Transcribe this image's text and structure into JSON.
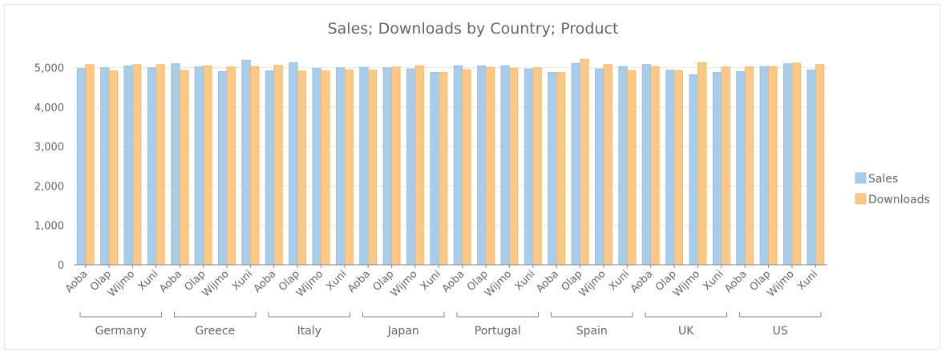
{
  "chart_data": {
    "type": "bar",
    "title": "Sales; Downloads by Country; Product",
    "xlabel": "",
    "ylabel": "",
    "ylim": [
      0,
      5500
    ],
    "yticks": [
      0,
      1000,
      2000,
      3000,
      4000,
      5000
    ],
    "ytick_labels": [
      "0",
      "1,000",
      "2,000",
      "3,000",
      "4,000",
      "5,000"
    ],
    "grid": true,
    "legend_position": "right",
    "groups": [
      "Germany",
      "Greece",
      "Italy",
      "Japan",
      "Portugal",
      "Spain",
      "UK",
      "US"
    ],
    "products": [
      "Aoba",
      "Olap",
      "Wijmo",
      "Xuni"
    ],
    "categories": [
      "Germany / Aoba",
      "Germany / Olap",
      "Germany / Wijmo",
      "Germany / Xuni",
      "Greece / Aoba",
      "Greece / Olap",
      "Greece / Wijmo",
      "Greece / Xuni",
      "Italy / Aoba",
      "Italy / Olap",
      "Italy / Wijmo",
      "Italy / Xuni",
      "Japan / Aoba",
      "Japan / Olap",
      "Japan / Wijmo",
      "Japan / Xuni",
      "Portugal / Aoba",
      "Portugal / Olap",
      "Portugal / Wijmo",
      "Portugal / Xuni",
      "Spain / Aoba",
      "Spain / Olap",
      "Spain / Wijmo",
      "Spain / Xuni",
      "UK / Aoba",
      "UK / Olap",
      "UK / Wijmo",
      "UK / Xuni",
      "US / Aoba",
      "US / Olap",
      "US / Wijmo",
      "US / Xuni"
    ],
    "series": [
      {
        "name": "Sales",
        "color": "#a8cdea",
        "stroke": "#8fb9dc",
        "values": [
          4980,
          5000,
          5050,
          5000,
          5100,
          5020,
          4900,
          5190,
          4920,
          5130,
          4980,
          5000,
          5010,
          5000,
          4970,
          4880,
          5050,
          5050,
          5050,
          4970,
          4880,
          5110,
          4970,
          5030,
          5080,
          4940,
          4820,
          4880,
          4900,
          5030,
          5100,
          4940
        ]
      },
      {
        "name": "Downloads",
        "color": "#fcc887",
        "stroke": "#f2b46a",
        "values": [
          5080,
          4920,
          5080,
          5080,
          4930,
          5050,
          5020,
          5030,
          5060,
          4920,
          4920,
          4950,
          4940,
          5020,
          5050,
          4880,
          4950,
          5010,
          4990,
          5000,
          4880,
          5210,
          5080,
          4930,
          5030,
          4930,
          5130,
          5020,
          5020,
          5030,
          5120,
          5080
        ]
      }
    ]
  }
}
